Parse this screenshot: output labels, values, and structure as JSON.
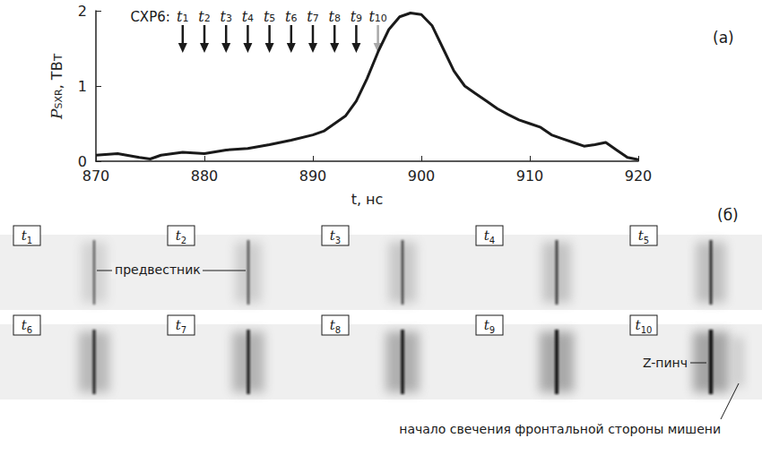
{
  "chart_data": {
    "type": "line",
    "panel_label": "(а)",
    "x": [
      870,
      872,
      874,
      875,
      876,
      878,
      880,
      882,
      884,
      886,
      888,
      890,
      891,
      892,
      893,
      894,
      895,
      896,
      897,
      898,
      899,
      900,
      901,
      902,
      903,
      904,
      905,
      906,
      907,
      908,
      909,
      910,
      911,
      912,
      913,
      914,
      915,
      916,
      917,
      918,
      919,
      920
    ],
    "values": [
      0.08,
      0.1,
      0.05,
      0.03,
      0.08,
      0.12,
      0.1,
      0.15,
      0.17,
      0.22,
      0.28,
      0.35,
      0.4,
      0.5,
      0.6,
      0.8,
      1.1,
      1.45,
      1.75,
      1.92,
      1.97,
      1.95,
      1.8,
      1.5,
      1.2,
      1.0,
      0.9,
      0.8,
      0.7,
      0.62,
      0.55,
      0.5,
      0.45,
      0.35,
      0.3,
      0.25,
      0.2,
      0.22,
      0.25,
      0.15,
      0.05,
      0.02
    ],
    "color": "#1a1a1a",
    "xlim": [
      870,
      920
    ],
    "xticks": [
      870,
      880,
      890,
      900,
      910,
      920
    ],
    "ylim": [
      0,
      2
    ],
    "yticks": [
      0,
      1,
      2
    ],
    "xlabel": "t, нс",
    "ylabel": {
      "text": "P",
      "subscript": "SXR",
      "unit": ", ТВт"
    },
    "grid": false,
    "frame_markers": {
      "label": "СХР6:",
      "times": [
        878,
        880,
        882,
        884,
        886,
        888,
        890,
        892,
        894,
        896
      ],
      "labels": [
        "t1",
        "t2",
        "t3",
        "t4",
        "t5",
        "t6",
        "t7",
        "t8",
        "t9",
        "t10"
      ],
      "colors": [
        "#1a1a1a",
        "#1a1a1a",
        "#1a1a1a",
        "#1a1a1a",
        "#1a1a1a",
        "#1a1a1a",
        "#1a1a1a",
        "#1a1a1a",
        "#1a1a1a",
        "#a8a8a8"
      ]
    }
  },
  "frames": {
    "panel_label": "(б)",
    "labels": [
      "t1",
      "t2",
      "t3",
      "t4",
      "t5",
      "t6",
      "t7",
      "t8",
      "t9",
      "t10"
    ],
    "annotations": {
      "precursor": "предвестник",
      "pinch": "Z-пинч",
      "target_glow": "начало свечения фронтальной стороны мишени"
    }
  }
}
